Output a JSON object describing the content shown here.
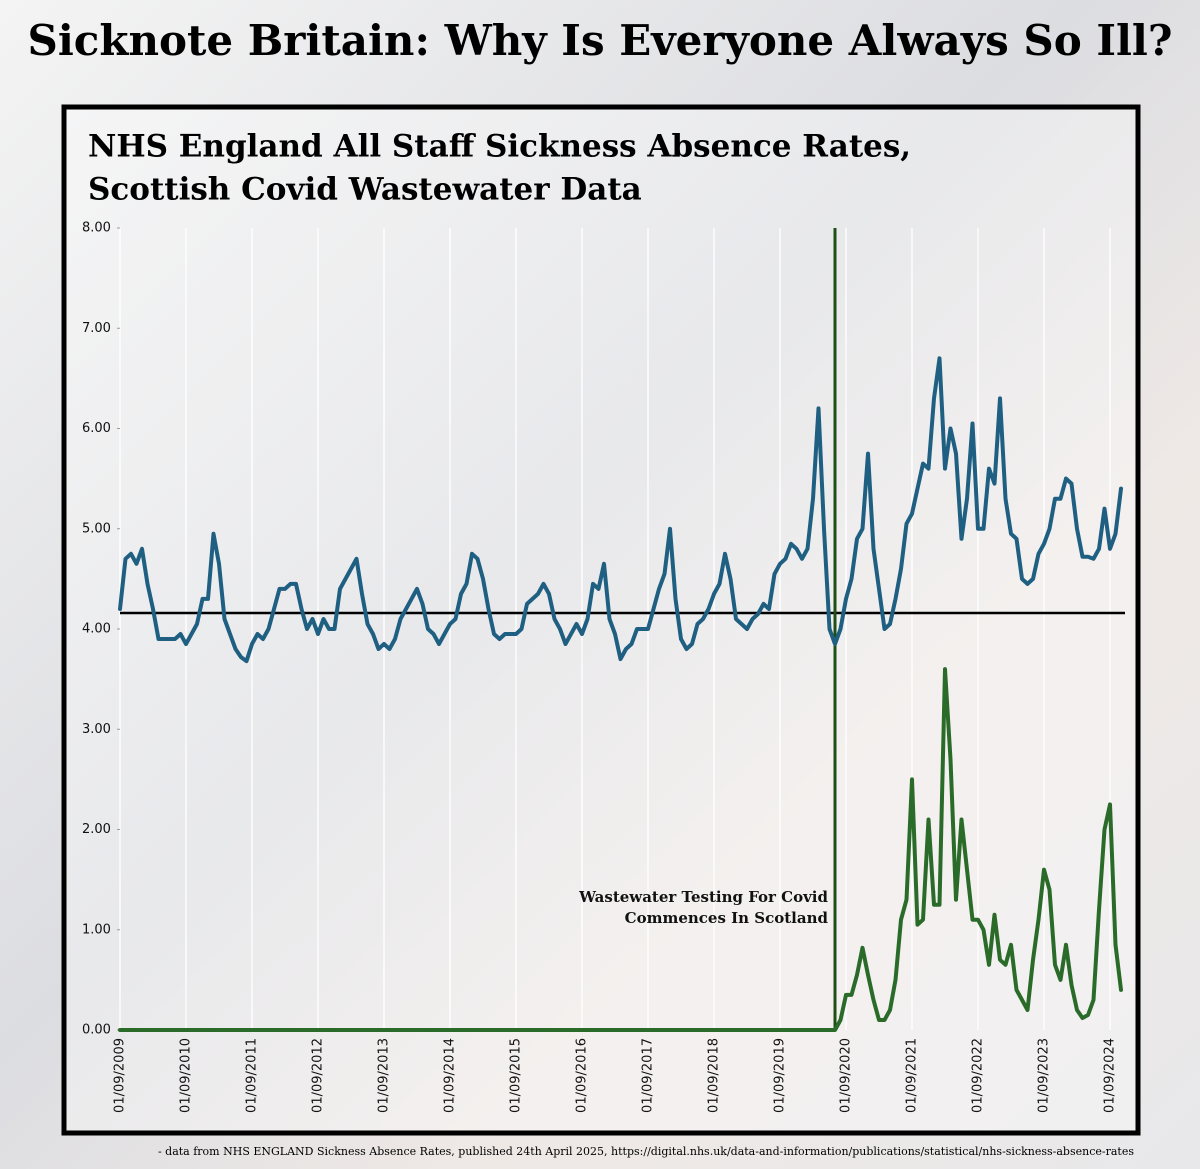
{
  "page_title": "Sicknote Britain: Why Is Everyone Always So Ill?",
  "source": "- data from NHS ENGLAND Sickness Absence Rates, published 24th April 2025, https://digital.nhs.uk/data-and-information/publications/statistical/nhs-sickness-absence-rates",
  "chart_data": {
    "type": "line",
    "title": [
      "NHS England All Staff Sickness Absence Rates,",
      "Scottish Covid Wastewater Data"
    ],
    "categories": [
      "01/09/2009",
      null,
      null,
      null,
      null,
      null,
      null,
      null,
      null,
      null,
      null,
      null,
      "01/09/2010",
      null,
      null,
      null,
      null,
      null,
      null,
      null,
      null,
      null,
      null,
      null,
      "01/09/2011",
      null,
      null,
      null,
      null,
      null,
      null,
      null,
      null,
      null,
      null,
      null,
      "01/09/2012",
      null,
      null,
      null,
      null,
      null,
      null,
      null,
      null,
      null,
      null,
      null,
      "01/09/2013",
      null,
      null,
      null,
      null,
      null,
      null,
      null,
      null,
      null,
      null,
      null,
      "01/09/2014",
      null,
      null,
      null,
      null,
      null,
      null,
      null,
      null,
      null,
      null,
      null,
      "01/09/2015",
      null,
      null,
      null,
      null,
      null,
      null,
      null,
      null,
      null,
      null,
      null,
      "01/09/2016",
      null,
      null,
      null,
      null,
      null,
      null,
      null,
      null,
      null,
      null,
      null,
      "01/09/2017",
      null,
      null,
      null,
      null,
      null,
      null,
      null,
      null,
      null,
      null,
      null,
      "01/09/2018",
      null,
      null,
      null,
      null,
      null,
      null,
      null,
      null,
      null,
      null,
      null,
      "01/09/2019",
      null,
      null,
      null,
      null,
      null,
      null,
      null,
      null,
      null,
      null,
      null,
      "01/09/2020",
      null,
      null,
      null,
      null,
      null,
      null,
      null,
      null,
      null,
      null,
      null,
      "01/09/2021",
      null,
      null,
      null,
      null,
      null,
      null,
      null,
      null,
      null,
      null,
      null,
      "01/09/2022",
      null,
      null,
      null,
      null,
      null,
      null,
      null,
      null,
      null,
      null,
      null,
      "01/09/2023",
      null,
      null,
      null,
      null,
      null,
      null,
      null,
      null,
      null,
      null,
      null,
      "01/09/2024",
      null,
      null
    ],
    "series": [
      {
        "color": "#1f5f82",
        "values": [
          4.2,
          4.7,
          4.75,
          4.65,
          4.8,
          4.45,
          4.2,
          3.9,
          3.9,
          3.9,
          3.9,
          3.95,
          3.85,
          3.95,
          4.05,
          4.3,
          4.3,
          4.95,
          4.65,
          4.1,
          3.95,
          3.8,
          3.72,
          3.68,
          3.85,
          3.95,
          3.9,
          4.0,
          4.2,
          4.4,
          4.4,
          4.45,
          4.45,
          4.2,
          4.0,
          4.1,
          3.95,
          4.1,
          4.0,
          4.0,
          4.4,
          4.5,
          4.6,
          4.7,
          4.35,
          4.05,
          3.95,
          3.8,
          3.85,
          3.8,
          3.9,
          4.1,
          4.2,
          4.3,
          4.4,
          4.25,
          4.0,
          3.95,
          3.85,
          3.95,
          4.05,
          4.1,
          4.35,
          4.45,
          4.75,
          4.7,
          4.5,
          4.2,
          3.95,
          3.9,
          3.95,
          3.95,
          3.95,
          4.0,
          4.25,
          4.3,
          4.35,
          4.45,
          4.35,
          4.1,
          4.0,
          3.85,
          3.95,
          4.05,
          3.95,
          4.1,
          4.45,
          4.4,
          4.65,
          4.1,
          3.95,
          3.7,
          3.8,
          3.85,
          4.0,
          4.0,
          4.0,
          4.2,
          4.4,
          4.55,
          5.0,
          4.3,
          3.9,
          3.8,
          3.85,
          4.05,
          4.1,
          4.2,
          4.35,
          4.45,
          4.75,
          4.5,
          4.1,
          4.05,
          4.0,
          4.1,
          4.15,
          4.25,
          4.2,
          4.55,
          4.65,
          4.7,
          4.85,
          4.8,
          4.7,
          4.8,
          5.3,
          6.2,
          5.0,
          4.0,
          3.85,
          4.0,
          4.3,
          4.5,
          4.9,
          5.0,
          5.75,
          4.8,
          4.4,
          4.0,
          4.05,
          4.3,
          4.6,
          5.05,
          5.15,
          5.4,
          5.65,
          5.6,
          6.3,
          6.7,
          5.6,
          6.0,
          5.75,
          4.9,
          5.3,
          6.05,
          5.0,
          5.0,
          5.6,
          5.45,
          6.3,
          5.3,
          4.95,
          4.9,
          4.5,
          4.45,
          4.5,
          4.75,
          4.85,
          5.0,
          5.3,
          5.3,
          5.5,
          5.45,
          5.0,
          4.72,
          4.72,
          4.7,
          4.8,
          5.2,
          4.8,
          4.95,
          5.4
        ]
      },
      {
        "color": "#2a6b2a",
        "values": [
          0,
          0,
          0,
          0,
          0,
          0,
          0,
          0,
          0,
          0,
          0,
          0,
          0,
          0,
          0,
          0,
          0,
          0,
          0,
          0,
          0,
          0,
          0,
          0,
          0,
          0,
          0,
          0,
          0,
          0,
          0,
          0,
          0,
          0,
          0,
          0,
          0,
          0,
          0,
          0,
          0,
          0,
          0,
          0,
          0,
          0,
          0,
          0,
          0,
          0,
          0,
          0,
          0,
          0,
          0,
          0,
          0,
          0,
          0,
          0,
          0,
          0,
          0,
          0,
          0,
          0,
          0,
          0,
          0,
          0,
          0,
          0,
          0,
          0,
          0,
          0,
          0,
          0,
          0,
          0,
          0,
          0,
          0,
          0,
          0,
          0,
          0,
          0,
          0,
          0,
          0,
          0,
          0,
          0,
          0,
          0,
          0,
          0,
          0,
          0,
          0,
          0,
          0,
          0,
          0,
          0,
          0,
          0,
          0,
          0,
          0,
          0,
          0,
          0,
          0,
          0,
          0,
          0,
          0,
          0,
          0,
          0,
          0,
          0,
          0,
          0,
          0,
          0,
          0,
          0,
          0,
          0.1,
          0.35,
          0.35,
          0.55,
          0.82,
          0.55,
          0.3,
          0.1,
          0.1,
          0.2,
          0.5,
          1.1,
          1.3,
          2.5,
          1.05,
          1.1,
          2.1,
          1.25,
          1.25,
          3.6,
          2.7,
          1.3,
          2.1,
          1.6,
          1.1,
          1.1,
          1.0,
          0.65,
          1.15,
          0.7,
          0.65,
          0.85,
          0.4,
          0.3,
          0.2,
          0.7,
          1.1,
          1.6,
          1.4,
          0.65,
          0.5,
          0.85,
          0.45,
          0.2,
          0.12,
          0.15,
          0.3,
          1.2,
          2.0,
          2.25,
          0.85,
          0.4
        ]
      }
    ],
    "ylim": [
      0,
      8
    ],
    "yticks": [
      {
        "value": 0,
        "label": "0.00"
      },
      {
        "value": 1,
        "label": "1.00"
      },
      {
        "value": 2,
        "label": "2.00"
      },
      {
        "value": 3,
        "label": "3.00"
      },
      {
        "value": 4,
        "label": "4.00"
      },
      {
        "value": 5,
        "label": "5.00"
      },
      {
        "value": 6,
        "label": "6.00"
      },
      {
        "value": 7,
        "label": "7.00"
      },
      {
        "value": 8,
        "label": "8.00"
      }
    ],
    "reference_line": {
      "value": 4.16,
      "color": "#000000"
    },
    "annotation": {
      "lines": [
        "Wastewater Testing For Covid",
        "Commences In Scotland"
      ],
      "category_index": 130,
      "color": "#1f4f17"
    },
    "grid": true
  }
}
